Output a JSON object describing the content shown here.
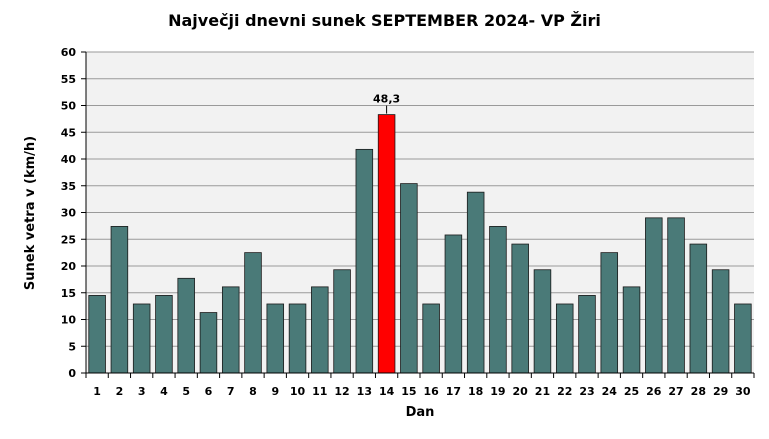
{
  "chart_data": {
    "type": "bar",
    "title": "Največji dnevni sunek SEPTEMBER  2024- VP Žiri",
    "xlabel": "Dan",
    "ylabel": "Sunek vetra  v (km/h)",
    "ylim": [
      0,
      60
    ],
    "ytick_step": 5,
    "grid": true,
    "categories": [
      "1",
      "2",
      "3",
      "4",
      "5",
      "6",
      "7",
      "8",
      "9",
      "10",
      "11",
      "12",
      "13",
      "14",
      "15",
      "16",
      "17",
      "18",
      "19",
      "20",
      "21",
      "22",
      "23",
      "24",
      "25",
      "26",
      "27",
      "28",
      "29",
      "30"
    ],
    "series": [
      {
        "values": [
          14.5,
          27.4,
          12.9,
          14.5,
          17.7,
          11.3,
          16.1,
          22.5,
          12.9,
          12.9,
          16.1,
          19.3,
          41.8,
          48.3,
          35.4,
          12.9,
          25.8,
          33.8,
          27.4,
          24.1,
          19.3,
          12.9,
          14.5,
          22.5,
          16.1,
          29.0,
          29.0,
          24.1,
          19.3,
          12.9
        ]
      }
    ],
    "bar_color": "#4a7a78",
    "highlight_color": "#ff0000",
    "highlight_index": 13,
    "annotations": [
      {
        "category": "14",
        "text": "48,3"
      }
    ],
    "plot_background": "#f2f2f2"
  }
}
